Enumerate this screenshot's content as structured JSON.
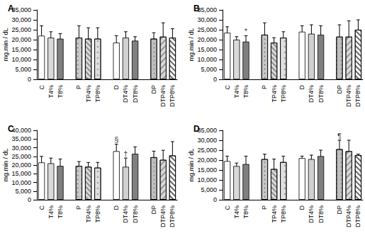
{
  "chart_data": [
    {
      "type": "bar",
      "title": "A",
      "y_label": "mg.min / dL",
      "categories": [
        "C",
        "T4%",
        "T8%",
        null,
        "P",
        "TP4%",
        "TP8%",
        null,
        "D",
        "DT4%",
        "DT8%",
        null,
        "DP",
        "DTP4%",
        "DTP8%"
      ],
      "values": [
        22000,
        21000,
        20500,
        null,
        21000,
        20500,
        20500,
        null,
        18500,
        21000,
        19500,
        null,
        20500,
        21500,
        21000
      ],
      "errors": [
        5000,
        3000,
        2500,
        null,
        6000,
        5500,
        5500,
        null,
        3500,
        3000,
        2000,
        null,
        3000,
        7000,
        4500
      ],
      "colors": [
        "#ffffff",
        "#d9d9d9",
        "#808080",
        null,
        "#c8c8c8",
        "#d9d9d9",
        "#e0e0e0",
        null,
        "#ffffff",
        "#d0d0d0",
        "#808080",
        null,
        "#bfbfbf",
        "#d9d9d9",
        "#ffffff"
      ],
      "ylim": [
        0,
        35000
      ],
      "yticks": [
        0,
        5000,
        10000,
        15000,
        20000,
        25000,
        30000,
        35000
      ],
      "grid": false,
      "annotations": []
    },
    {
      "type": "bar",
      "title": "B",
      "y_label": "mg.min / dL",
      "categories": [
        "C",
        "T4%",
        "T8%",
        null,
        "P",
        "TP4%",
        "TP8%",
        null,
        "D",
        "DT4%",
        "DT8%",
        null,
        "DP",
        "DTP4%",
        "DTP8%"
      ],
      "values": [
        23500,
        20000,
        19000,
        null,
        22500,
        18500,
        21000,
        null,
        24000,
        23000,
        22500,
        null,
        21500,
        21500,
        25000
      ],
      "errors": [
        3000,
        1500,
        3000,
        null,
        6000,
        2500,
        3000,
        null,
        3000,
        4500,
        4500,
        null,
        6000,
        8000,
        5000
      ],
      "colors": [
        "#ffffff",
        "#d9d9d9",
        "#808080",
        null,
        "#c8c8c8",
        "#d9d9d9",
        "#e0e0e0",
        null,
        "#ffffff",
        "#d0d0d0",
        "#808080",
        null,
        "#bfbfbf",
        "#d9d9d9",
        "#ffffff"
      ],
      "ylim": [
        0,
        35000
      ],
      "yticks": [
        0,
        5000,
        10000,
        15000,
        20000,
        25000,
        30000,
        35000
      ],
      "grid": false,
      "annotations": [
        {
          "category": "T8%",
          "text": "*"
        }
      ]
    },
    {
      "type": "bar",
      "title": "C",
      "y_label": "mg.min / dL",
      "categories": [
        "C",
        "T4%",
        "T8%",
        null,
        "P",
        "TP4%",
        "TP8%",
        null,
        "D",
        "DT4%",
        "DT8%",
        null,
        "DP",
        "DTP4%",
        "DTP8%"
      ],
      "values": [
        21500,
        21000,
        19500,
        null,
        19500,
        19000,
        18500,
        null,
        28000,
        19000,
        26500,
        null,
        24500,
        23000,
        25500
      ],
      "errors": [
        3500,
        3000,
        4000,
        null,
        2500,
        2500,
        3000,
        null,
        4000,
        5000,
        4000,
        null,
        3500,
        5500,
        8000
      ],
      "colors": [
        "#ffffff",
        "#d9d9d9",
        "#808080",
        null,
        "#c8c8c8",
        "#d9d9d9",
        "#e0e0e0",
        null,
        "#ffffff",
        "#d0d0d0",
        "#808080",
        null,
        "#bfbfbf",
        "#d9d9d9",
        "#ffffff"
      ],
      "ylim": [
        0,
        40000
      ],
      "yticks": [
        0,
        5000,
        10000,
        15000,
        20000,
        25000,
        30000,
        35000,
        40000
      ],
      "grid": false,
      "annotations": [
        {
          "category": "D",
          "text": "§"
        },
        {
          "category": "DT4%",
          "text": "†"
        }
      ]
    },
    {
      "type": "bar",
      "title": "D",
      "y_label": "mg.min / dL",
      "categories": [
        "C",
        "T4%",
        "T8%",
        null,
        "P",
        "TP4%",
        "TP8%",
        null,
        "D",
        "DT4%",
        "DT8%",
        null,
        "DP",
        "DTP4%",
        "DTP8%"
      ],
      "values": [
        19500,
        17000,
        18000,
        null,
        20500,
        15500,
        19000,
        null,
        21000,
        20500,
        22000,
        null,
        25500,
        24500,
        22500
      ],
      "errors": [
        2500,
        1500,
        4000,
        null,
        2500,
        5000,
        3000,
        null,
        1000,
        2000,
        3000,
        null,
        4500,
        5500,
        500
      ],
      "colors": [
        "#ffffff",
        "#d9d9d9",
        "#808080",
        null,
        "#c8c8c8",
        "#d9d9d9",
        "#e0e0e0",
        null,
        "#ffffff",
        "#d0d0d0",
        "#808080",
        null,
        "#bfbfbf",
        "#d9d9d9",
        "#ffffff"
      ],
      "ylim": [
        0,
        35000
      ],
      "yticks": [
        0,
        5000,
        10000,
        15000,
        20000,
        25000,
        30000,
        35000
      ],
      "grid": false,
      "annotations": [
        {
          "category": "DP",
          "text": "¶"
        }
      ]
    }
  ]
}
